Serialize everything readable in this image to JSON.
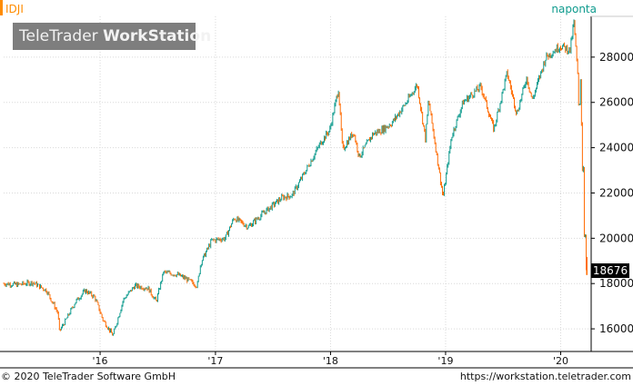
{
  "header": {
    "symbol": "IDJI",
    "frequency": "naponta",
    "logo_light": "TeleTrader ",
    "logo_bold": "WorkStation"
  },
  "footer": {
    "copyright": "© 2020 TeleTrader Software GmbH",
    "url": "https://workstation.teletrader.com"
  },
  "colors": {
    "up": "#0f9b8e",
    "down": "#ff6a00",
    "accent": "#ff8c00",
    "grid": "#d9d9d9",
    "axis": "#000000"
  },
  "chart_data": {
    "type": "candlestick",
    "title": "",
    "xlabel": "",
    "ylabel": "",
    "last_value": "18676",
    "ylim": [
      15000,
      29800
    ],
    "y_ticks": [
      16000,
      18000,
      20000,
      22000,
      24000,
      26000,
      28000
    ],
    "x_ticks": [
      {
        "label": "'16",
        "date": "2016-01-01"
      },
      {
        "label": "'17",
        "date": "2017-01-01"
      },
      {
        "label": "'18",
        "date": "2018-01-01"
      },
      {
        "label": "'19",
        "date": "2019-01-01"
      },
      {
        "label": "'20",
        "date": "2020-01-01"
      }
    ],
    "x_range": [
      "2015-03-01",
      "2020-04-01"
    ],
    "grid": true,
    "series": [
      {
        "path_points": [
          [
            "2015-03-01",
            18000
          ],
          [
            "2015-04-15",
            17950
          ],
          [
            "2015-06-01",
            18050
          ],
          [
            "2015-07-15",
            17700
          ],
          [
            "2015-08-20",
            16700
          ],
          [
            "2015-08-25",
            15900
          ],
          [
            "2015-09-15",
            16400
          ],
          [
            "2015-10-15",
            17200
          ],
          [
            "2015-11-15",
            17700
          ],
          [
            "2015-12-15",
            17400
          ],
          [
            "2016-01-10",
            16400
          ],
          [
            "2016-02-11",
            15700
          ],
          [
            "2016-03-15",
            17300
          ],
          [
            "2016-04-20",
            17900
          ],
          [
            "2016-06-01",
            17800
          ],
          [
            "2016-06-27",
            17200
          ],
          [
            "2016-07-20",
            18500
          ],
          [
            "2016-09-01",
            18400
          ],
          [
            "2016-10-01",
            18200
          ],
          [
            "2016-11-04",
            17900
          ],
          [
            "2016-11-15",
            18900
          ],
          [
            "2016-12-20",
            19900
          ],
          [
            "2017-02-01",
            20000
          ],
          [
            "2017-03-01",
            20900
          ],
          [
            "2017-04-15",
            20500
          ],
          [
            "2017-06-01",
            21100
          ],
          [
            "2017-08-01",
            21800
          ],
          [
            "2017-09-01",
            21900
          ],
          [
            "2017-10-15",
            23000
          ],
          [
            "2017-11-30",
            24200
          ],
          [
            "2017-12-30",
            24800
          ],
          [
            "2018-01-26",
            26600
          ],
          [
            "2018-02-08",
            23900
          ],
          [
            "2018-03-15",
            24700
          ],
          [
            "2018-04-02",
            23600
          ],
          [
            "2018-05-15",
            24600
          ],
          [
            "2018-06-15",
            24800
          ],
          [
            "2018-07-15",
            25100
          ],
          [
            "2018-08-30",
            26000
          ],
          [
            "2018-10-03",
            26800
          ],
          [
            "2018-10-29",
            24400
          ],
          [
            "2018-11-08",
            26100
          ],
          [
            "2018-12-24",
            21800
          ],
          [
            "2019-01-20",
            24500
          ],
          [
            "2019-02-25",
            26000
          ],
          [
            "2019-04-23",
            26700
          ],
          [
            "2019-06-03",
            24800
          ],
          [
            "2019-07-15",
            27300
          ],
          [
            "2019-08-15",
            25500
          ],
          [
            "2019-09-15",
            27100
          ],
          [
            "2019-10-03",
            26100
          ],
          [
            "2019-11-15",
            28000
          ],
          [
            "2019-12-31",
            28500
          ],
          [
            "2020-01-31",
            28300
          ],
          [
            "2020-02-12",
            29550
          ],
          [
            "2020-02-25",
            27000
          ],
          [
            "2020-02-28",
            25400
          ],
          [
            "2020-03-04",
            27000
          ],
          [
            "2020-03-09",
            23900
          ],
          [
            "2020-03-12",
            21200
          ],
          [
            "2020-03-13",
            23200
          ],
          [
            "2020-03-16",
            20200
          ],
          [
            "2020-03-19",
            20100
          ],
          [
            "2020-03-20",
            19100
          ],
          [
            "2020-03-23",
            18300
          ],
          [
            "2020-03-24",
            18676
          ]
        ]
      }
    ]
  }
}
